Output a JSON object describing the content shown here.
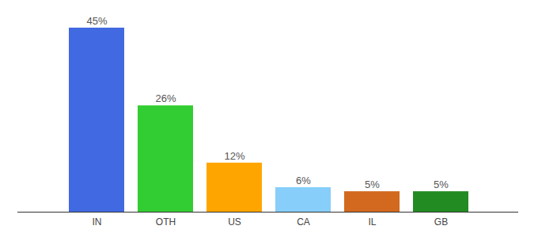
{
  "chart_data": {
    "type": "bar",
    "categories": [
      "IN",
      "OTH",
      "US",
      "CA",
      "IL",
      "GB"
    ],
    "values": [
      45,
      26,
      12,
      6,
      5,
      5
    ],
    "value_labels": [
      "45%",
      "26%",
      "12%",
      "6%",
      "5%",
      "5%"
    ],
    "colors": [
      "#4169e1",
      "#32cd32",
      "#ffa500",
      "#87cefa",
      "#d2691e",
      "#228b22"
    ],
    "data_labels": true,
    "tick_labels": "x",
    "grid": false
  }
}
